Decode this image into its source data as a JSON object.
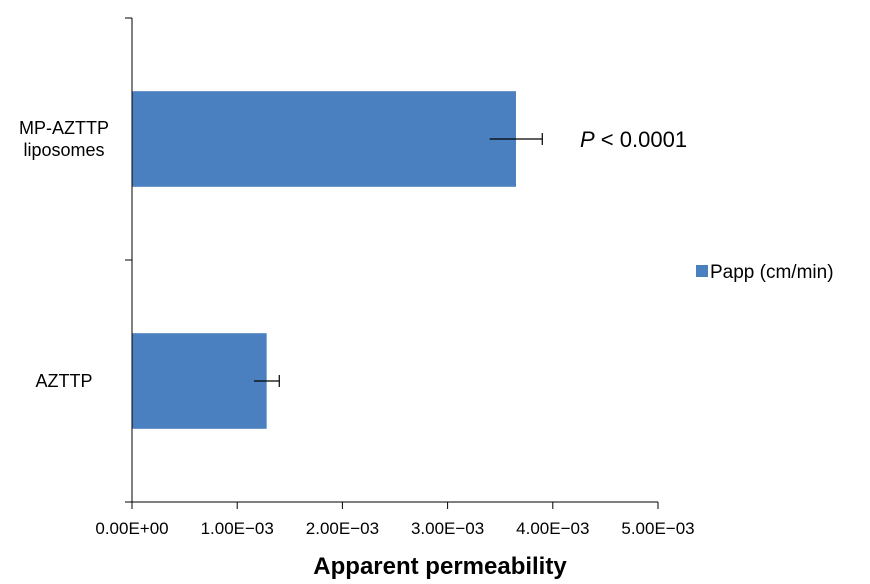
{
  "chart_data": {
    "type": "bar",
    "orientation": "horizontal",
    "categories": [
      "MP-AZTTP liposomes",
      "AZTTP"
    ],
    "category_lines": [
      [
        "MP-AZTTP",
        "liposomes"
      ],
      [
        "AZTTP"
      ]
    ],
    "series": [
      {
        "name": "Papp (cm/min)",
        "color": "#4a80c0",
        "values": [
          0.00365,
          0.00128
        ],
        "errors": [
          0.00025,
          0.00012
        ]
      }
    ],
    "xlabel": "Apparent permeability",
    "ylabel": "",
    "xlim": [
      0,
      0.005
    ],
    "xticks": [
      0,
      0.001,
      0.002,
      0.003,
      0.004,
      0.005
    ],
    "xtick_labels": [
      "0.00E+00",
      "1.00E−03",
      "2.00E−03",
      "3.00E−03",
      "4.00E−03",
      "5.00E−03"
    ],
    "legend_position": "right",
    "grid": false,
    "annotations": [
      {
        "category": "MP-AZTTP liposomes",
        "italic": "P",
        "text": " < 0.0001"
      }
    ]
  }
}
